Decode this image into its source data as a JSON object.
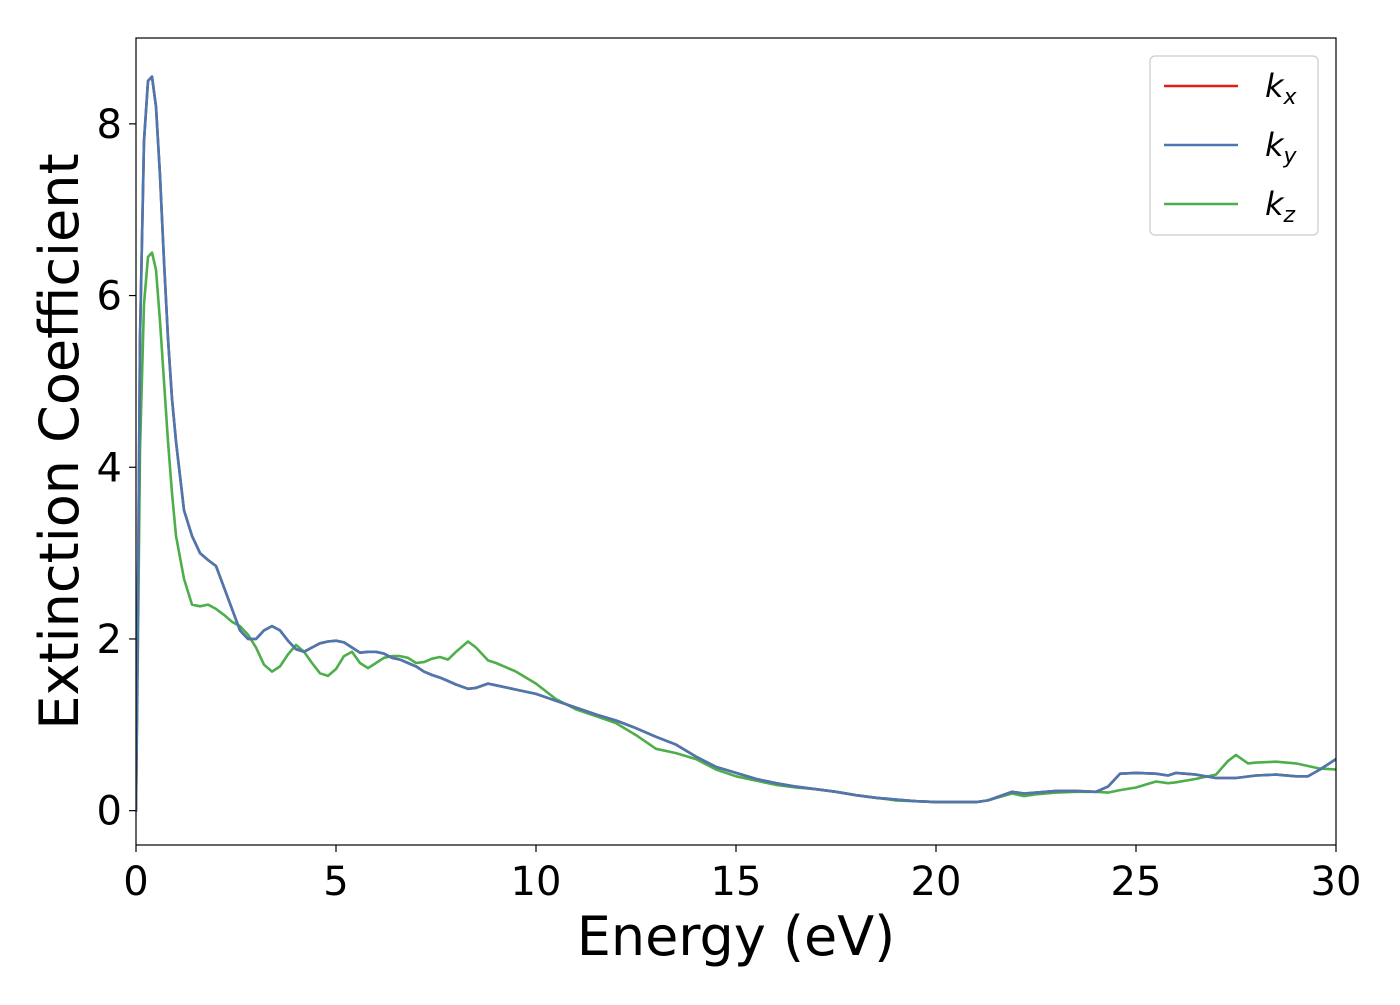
{
  "chart_data": {
    "type": "line",
    "title": "",
    "xlabel": "Energy (eV)",
    "ylabel": "Extinction Coefficient",
    "xlim": [
      0,
      30
    ],
    "ylim": [
      -0.4,
      9.0
    ],
    "xticks": [
      0,
      5,
      10,
      15,
      20,
      25,
      30
    ],
    "yticks": [
      0,
      2,
      4,
      6,
      8
    ],
    "grid": false,
    "legend_position": "top-right",
    "series": [
      {
        "name": "k_x",
        "label_main": "k",
        "label_sub": "x",
        "color": "#e41a1c",
        "x": [
          0,
          0.05,
          0.1,
          0.2,
          0.3,
          0.4,
          0.5,
          0.6,
          0.7,
          0.8,
          0.9,
          1.0,
          1.2,
          1.4,
          1.6,
          1.8,
          2.0,
          2.2,
          2.4,
          2.6,
          2.8,
          3.0,
          3.2,
          3.4,
          3.6,
          3.8,
          4.0,
          4.2,
          4.4,
          4.6,
          4.8,
          5.0,
          5.2,
          5.4,
          5.6,
          5.8,
          6.0,
          6.2,
          6.4,
          6.6,
          6.8,
          7.0,
          7.2,
          7.4,
          7.6,
          7.8,
          8.0,
          8.3,
          8.5,
          8.8,
          9.0,
          9.5,
          10.0,
          10.5,
          11.0,
          11.5,
          12.0,
          12.5,
          13.0,
          13.5,
          14.0,
          14.5,
          15.0,
          15.5,
          16.0,
          16.5,
          17.0,
          17.5,
          18.0,
          18.5,
          19.0,
          19.5,
          20.0,
          20.5,
          21.0,
          21.3,
          21.6,
          21.9,
          22.2,
          22.5,
          23.0,
          23.5,
          24.0,
          24.3,
          24.6,
          25.0,
          25.5,
          25.8,
          26.0,
          26.5,
          27.0,
          27.5,
          28.0,
          28.5,
          29.0,
          29.3,
          29.6,
          30.0
        ],
        "y": [
          0.0,
          2.5,
          5.5,
          7.8,
          8.5,
          8.55,
          8.2,
          7.4,
          6.4,
          5.5,
          4.8,
          4.3,
          3.5,
          3.2,
          3.0,
          2.92,
          2.85,
          2.6,
          2.35,
          2.1,
          2.0,
          2.0,
          2.1,
          2.15,
          2.1,
          1.98,
          1.88,
          1.85,
          1.9,
          1.95,
          1.97,
          1.98,
          1.96,
          1.9,
          1.84,
          1.85,
          1.85,
          1.83,
          1.78,
          1.76,
          1.72,
          1.68,
          1.62,
          1.58,
          1.55,
          1.51,
          1.47,
          1.42,
          1.43,
          1.48,
          1.46,
          1.41,
          1.36,
          1.28,
          1.2,
          1.12,
          1.05,
          0.96,
          0.86,
          0.77,
          0.63,
          0.51,
          0.44,
          0.37,
          0.32,
          0.28,
          0.25,
          0.22,
          0.18,
          0.15,
          0.13,
          0.11,
          0.1,
          0.1,
          0.1,
          0.12,
          0.17,
          0.22,
          0.2,
          0.21,
          0.23,
          0.23,
          0.22,
          0.28,
          0.43,
          0.44,
          0.43,
          0.41,
          0.44,
          0.42,
          0.38,
          0.38,
          0.41,
          0.42,
          0.4,
          0.4,
          0.48,
          0.6
        ]
      },
      {
        "name": "k_y",
        "label_main": "k",
        "label_sub": "y",
        "color": "#4a78b0",
        "x": [
          0,
          0.05,
          0.1,
          0.2,
          0.3,
          0.4,
          0.5,
          0.6,
          0.7,
          0.8,
          0.9,
          1.0,
          1.2,
          1.4,
          1.6,
          1.8,
          2.0,
          2.2,
          2.4,
          2.6,
          2.8,
          3.0,
          3.2,
          3.4,
          3.6,
          3.8,
          4.0,
          4.2,
          4.4,
          4.6,
          4.8,
          5.0,
          5.2,
          5.4,
          5.6,
          5.8,
          6.0,
          6.2,
          6.4,
          6.6,
          6.8,
          7.0,
          7.2,
          7.4,
          7.6,
          7.8,
          8.0,
          8.3,
          8.5,
          8.8,
          9.0,
          9.5,
          10.0,
          10.5,
          11.0,
          11.5,
          12.0,
          12.5,
          13.0,
          13.5,
          14.0,
          14.5,
          15.0,
          15.5,
          16.0,
          16.5,
          17.0,
          17.5,
          18.0,
          18.5,
          19.0,
          19.5,
          20.0,
          20.5,
          21.0,
          21.3,
          21.6,
          21.9,
          22.2,
          22.5,
          23.0,
          23.5,
          24.0,
          24.3,
          24.6,
          25.0,
          25.5,
          25.8,
          26.0,
          26.5,
          27.0,
          27.5,
          28.0,
          28.5,
          29.0,
          29.3,
          29.6,
          30.0
        ],
        "y": [
          0.0,
          2.5,
          5.5,
          7.8,
          8.5,
          8.55,
          8.2,
          7.4,
          6.4,
          5.5,
          4.8,
          4.3,
          3.5,
          3.2,
          3.0,
          2.92,
          2.85,
          2.6,
          2.35,
          2.1,
          2.0,
          2.0,
          2.1,
          2.15,
          2.1,
          1.98,
          1.88,
          1.85,
          1.9,
          1.95,
          1.97,
          1.98,
          1.96,
          1.9,
          1.84,
          1.85,
          1.85,
          1.83,
          1.78,
          1.76,
          1.72,
          1.68,
          1.62,
          1.58,
          1.55,
          1.51,
          1.47,
          1.42,
          1.43,
          1.48,
          1.46,
          1.41,
          1.36,
          1.28,
          1.2,
          1.12,
          1.05,
          0.96,
          0.86,
          0.77,
          0.63,
          0.51,
          0.44,
          0.37,
          0.32,
          0.28,
          0.25,
          0.22,
          0.18,
          0.15,
          0.13,
          0.11,
          0.1,
          0.1,
          0.1,
          0.12,
          0.17,
          0.22,
          0.2,
          0.21,
          0.23,
          0.23,
          0.22,
          0.28,
          0.43,
          0.44,
          0.43,
          0.41,
          0.44,
          0.42,
          0.38,
          0.38,
          0.41,
          0.42,
          0.4,
          0.4,
          0.48,
          0.6
        ]
      },
      {
        "name": "k_z",
        "label_main": "k",
        "label_sub": "z",
        "color": "#4daf4a",
        "x": [
          0,
          0.05,
          0.1,
          0.2,
          0.3,
          0.4,
          0.5,
          0.6,
          0.7,
          0.8,
          0.9,
          1.0,
          1.2,
          1.4,
          1.6,
          1.8,
          2.0,
          2.2,
          2.4,
          2.6,
          2.8,
          3.0,
          3.2,
          3.4,
          3.6,
          3.8,
          4.0,
          4.2,
          4.4,
          4.6,
          4.8,
          5.0,
          5.2,
          5.4,
          5.6,
          5.8,
          6.0,
          6.2,
          6.4,
          6.6,
          6.8,
          7.0,
          7.2,
          7.4,
          7.6,
          7.8,
          8.0,
          8.3,
          8.5,
          8.8,
          9.0,
          9.5,
          10.0,
          10.5,
          11.0,
          11.5,
          12.0,
          12.5,
          13.0,
          13.5,
          14.0,
          14.5,
          15.0,
          15.5,
          16.0,
          16.5,
          17.0,
          17.5,
          18.0,
          18.5,
          19.0,
          19.5,
          20.0,
          20.5,
          21.0,
          21.3,
          21.6,
          21.9,
          22.2,
          22.5,
          23.0,
          23.5,
          24.0,
          24.3,
          24.6,
          25.0,
          25.5,
          25.8,
          26.0,
          26.5,
          27.0,
          27.3,
          27.5,
          27.8,
          28.0,
          28.5,
          29.0,
          29.3,
          29.6,
          30.0
        ],
        "y": [
          0.0,
          2.0,
          4.2,
          5.9,
          6.45,
          6.5,
          6.3,
          5.7,
          5.0,
          4.3,
          3.7,
          3.2,
          2.7,
          2.4,
          2.38,
          2.4,
          2.35,
          2.28,
          2.2,
          2.15,
          2.05,
          1.9,
          1.7,
          1.62,
          1.68,
          1.82,
          1.93,
          1.85,
          1.72,
          1.6,
          1.57,
          1.65,
          1.8,
          1.85,
          1.72,
          1.66,
          1.72,
          1.78,
          1.8,
          1.8,
          1.78,
          1.72,
          1.73,
          1.77,
          1.79,
          1.76,
          1.85,
          1.97,
          1.9,
          1.75,
          1.72,
          1.62,
          1.48,
          1.3,
          1.18,
          1.1,
          1.02,
          0.88,
          0.72,
          0.67,
          0.6,
          0.48,
          0.4,
          0.35,
          0.3,
          0.27,
          0.25,
          0.22,
          0.18,
          0.15,
          0.12,
          0.11,
          0.1,
          0.1,
          0.1,
          0.12,
          0.16,
          0.2,
          0.17,
          0.19,
          0.21,
          0.22,
          0.22,
          0.21,
          0.24,
          0.27,
          0.34,
          0.32,
          0.33,
          0.37,
          0.42,
          0.58,
          0.65,
          0.55,
          0.56,
          0.57,
          0.55,
          0.52,
          0.49,
          0.48
        ]
      }
    ]
  }
}
